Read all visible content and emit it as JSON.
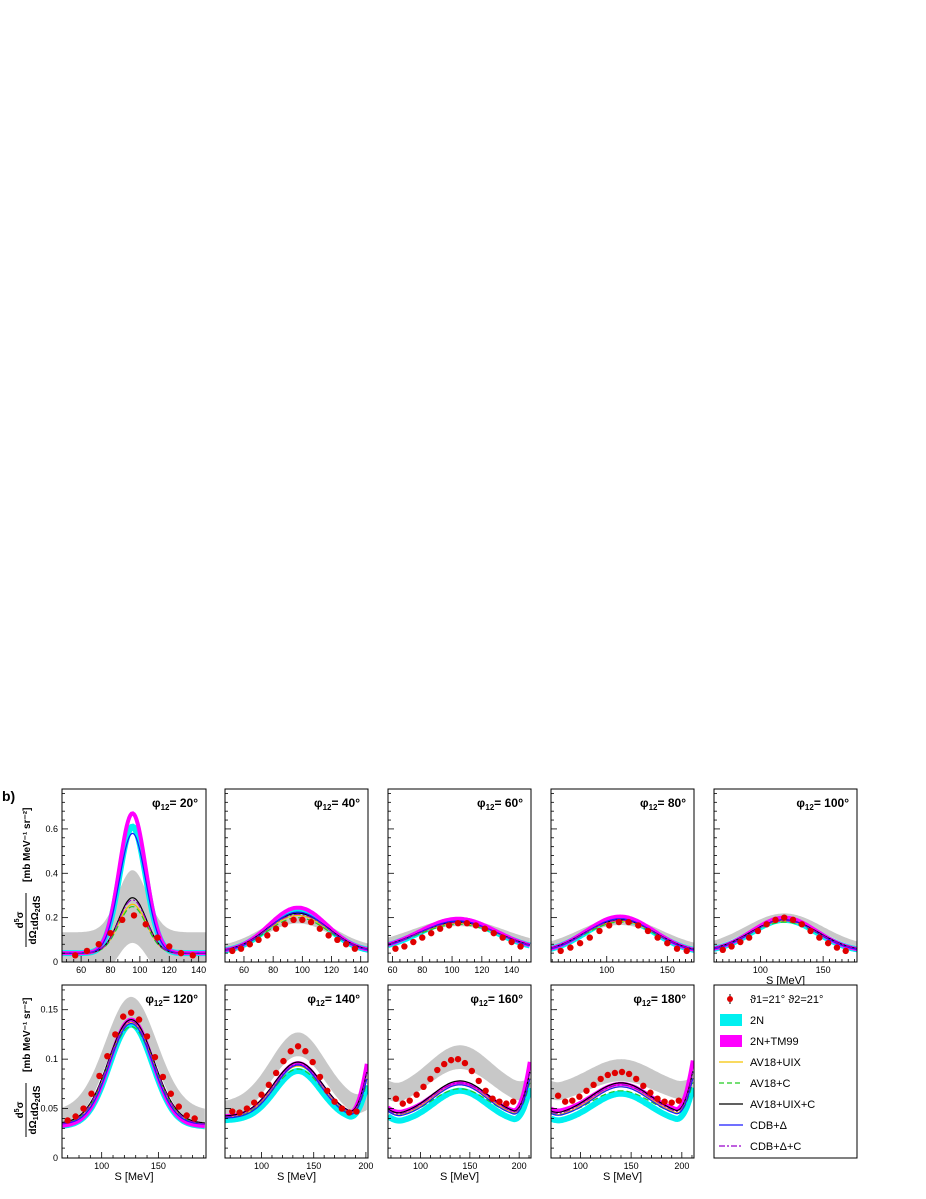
{
  "figure": {
    "panel_label": "b)",
    "legend": {
      "items": [
        {
          "key": "data",
          "label": "ϑ1=21° ϑ2=21°",
          "style": "points",
          "color": "#e00000"
        },
        {
          "key": "2N",
          "label": "2N",
          "style": "band",
          "color": "#00f0f0"
        },
        {
          "key": "2N+TM99",
          "label": "2N+TM99",
          "style": "band",
          "color": "#ff00ff"
        },
        {
          "key": "AV18+UIX",
          "label": "AV18+UIX",
          "style": "solid",
          "color": "#f5c400"
        },
        {
          "key": "AV18+C",
          "label": "AV18+C",
          "style": "dashed",
          "color": "#22cc22"
        },
        {
          "key": "AV18+UIX+C",
          "label": "AV18+UIX+C",
          "style": "solid",
          "color": "#000000"
        },
        {
          "key": "CDB+Δ",
          "label": "CDB+Δ",
          "style": "solid",
          "color": "#1a1aff"
        },
        {
          "key": "CDB+Δ+C",
          "label": "CDB+Δ+C",
          "style": "dashdot",
          "color": "#9900cc"
        }
      ]
    },
    "y_label_top": "[mb MeV⁻¹ sr⁻²]",
    "y_label_bottom": "[mb MeV⁻¹ sr⁻²]",
    "x_label": "S [MeV]"
  },
  "chart_data": [
    {
      "type": "line",
      "row": 0,
      "annotation": "φ12= 20°",
      "xlim": [
        47,
        145
      ],
      "ylim": [
        0,
        0.78
      ],
      "xticks": [
        60,
        80,
        100,
        120,
        140
      ],
      "yticks": [
        0,
        0.2,
        0.4,
        0.6
      ],
      "peak_x": 95,
      "peak_width": 9,
      "x_data": [
        56,
        64,
        72,
        80,
        88,
        96,
        104,
        112,
        120,
        128,
        136
      ],
      "data_y": [
        0.03,
        0.05,
        0.08,
        0.13,
        0.19,
        0.21,
        0.17,
        0.11,
        0.07,
        0.04,
        0.03
      ],
      "twoN": [
        0.04,
        0.61
      ],
      "tm99": [
        0.04,
        0.67
      ],
      "av18uix": [
        0.04,
        0.26
      ],
      "av18c": [
        0.04,
        0.25
      ],
      "av18uixc": [
        0.04,
        0.29
      ],
      "cdbd": [
        0.04,
        0.58
      ],
      "cdbdc": [
        0.04,
        0.28
      ],
      "band": [
        0.03,
        0.2
      ],
      "show_xlabel": false
    },
    {
      "type": "line",
      "row": 0,
      "annotation": "φ12= 40°",
      "xlim": [
        47,
        145
      ],
      "ylim": [
        0,
        0.78
      ],
      "xticks": [
        60,
        80,
        100,
        120,
        140
      ],
      "yticks": [
        0,
        0.2,
        0.4,
        0.6
      ],
      "peak_x": 97,
      "peak_width": 20,
      "x_data": [
        52,
        58,
        64,
        70,
        76,
        82,
        88,
        94,
        100,
        106,
        112,
        118,
        124,
        130,
        136
      ],
      "data_y": [
        0.05,
        0.06,
        0.08,
        0.1,
        0.12,
        0.15,
        0.17,
        0.19,
        0.19,
        0.18,
        0.15,
        0.12,
        0.1,
        0.08,
        0.06
      ],
      "twoN": [
        0.045,
        0.23
      ],
      "tm99": [
        0.045,
        0.245
      ],
      "av18uix": [
        0.045,
        0.21
      ],
      "av18c": [
        0.045,
        0.2
      ],
      "av18uixc": [
        0.045,
        0.22
      ],
      "cdbd": [
        0.045,
        0.225
      ],
      "cdbdc": [
        0.045,
        0.215
      ],
      "band": [
        0.03,
        0.02
      ],
      "show_xlabel": false
    },
    {
      "type": "line",
      "row": 0,
      "annotation": "φ12= 60°",
      "xlim": [
        57,
        153
      ],
      "ylim": [
        0,
        0.78
      ],
      "xticks": [
        60,
        80,
        100,
        120,
        140
      ],
      "yticks": [
        0,
        0.2,
        0.4,
        0.6
      ],
      "peak_x": 104,
      "peak_width": 26,
      "x_data": [
        62,
        68,
        74,
        80,
        86,
        92,
        98,
        104,
        110,
        116,
        122,
        128,
        134,
        140,
        146
      ],
      "data_y": [
        0.06,
        0.07,
        0.09,
        0.11,
        0.13,
        0.15,
        0.165,
        0.175,
        0.175,
        0.165,
        0.15,
        0.13,
        0.11,
        0.09,
        0.07
      ],
      "twoN": [
        0.05,
        0.185
      ],
      "tm99": [
        0.05,
        0.195
      ],
      "av18uix": [
        0.05,
        0.175
      ],
      "av18c": [
        0.05,
        0.17
      ],
      "av18uixc": [
        0.05,
        0.18
      ],
      "cdbd": [
        0.05,
        0.185
      ],
      "cdbdc": [
        0.05,
        0.178
      ],
      "band": [
        0.03,
        0.015
      ],
      "show_xlabel": false
    },
    {
      "type": "line",
      "row": 0,
      "annotation": "φ12= 80°",
      "xlim": [
        54,
        172
      ],
      "ylim": [
        0,
        0.78
      ],
      "xticks": [
        100,
        150
      ],
      "yticks": [
        0,
        0.2,
        0.4,
        0.6
      ],
      "peak_x": 111,
      "peak_width": 28,
      "x_data": [
        62,
        70,
        78,
        86,
        94,
        102,
        110,
        118,
        126,
        134,
        142,
        150,
        158,
        166
      ],
      "data_y": [
        0.05,
        0.065,
        0.085,
        0.11,
        0.14,
        0.165,
        0.18,
        0.18,
        0.165,
        0.14,
        0.11,
        0.085,
        0.06,
        0.05
      ],
      "twoN": [
        0.04,
        0.195
      ],
      "tm99": [
        0.04,
        0.205
      ],
      "av18uix": [
        0.04,
        0.185
      ],
      "av18c": [
        0.04,
        0.18
      ],
      "av18uixc": [
        0.04,
        0.19
      ],
      "cdbd": [
        0.04,
        0.195
      ],
      "cdbdc": [
        0.04,
        0.188
      ],
      "band": [
        0.03,
        0.015
      ],
      "show_xlabel": false
    },
    {
      "type": "line",
      "row": 0,
      "annotation": "φ12= 100°",
      "xlim": [
        63,
        177
      ],
      "ylim": [
        0,
        0.78
      ],
      "xticks": [
        100,
        150
      ],
      "yticks": [
        0,
        0.2,
        0.4,
        0.6
      ],
      "peak_x": 119,
      "peak_width": 26,
      "x_data": [
        70,
        77,
        84,
        91,
        98,
        105,
        112,
        119,
        126,
        133,
        140,
        147,
        154,
        161,
        168
      ],
      "data_y": [
        0.055,
        0.07,
        0.09,
        0.11,
        0.14,
        0.17,
        0.19,
        0.2,
        0.19,
        0.17,
        0.14,
        0.11,
        0.085,
        0.065,
        0.05
      ],
      "twoN": [
        0.045,
        0.19
      ],
      "tm99": [
        0.045,
        0.2
      ],
      "av18uix": [
        0.045,
        0.185
      ],
      "av18c": [
        0.045,
        0.18
      ],
      "av18uixc": [
        0.045,
        0.19
      ],
      "cdbd": [
        0.045,
        0.19
      ],
      "cdbdc": [
        0.045,
        0.186
      ],
      "band": [
        0.03,
        0.015
      ],
      "show_xlabel": true
    },
    {
      "type": "line",
      "row": 1,
      "annotation": "φ12= 120°",
      "xlim": [
        65,
        192
      ],
      "ylim": [
        0,
        0.175
      ],
      "xticks": [
        100,
        150
      ],
      "yticks": [
        0,
        0.05,
        0.1,
        0.15
      ],
      "peak_x": 126,
      "peak_width": 19,
      "x_data": [
        70,
        77,
        84,
        91,
        98,
        105,
        112,
        119,
        126,
        133,
        140,
        147,
        154,
        161,
        168,
        175,
        182
      ],
      "data_y": [
        0.038,
        0.042,
        0.05,
        0.065,
        0.083,
        0.103,
        0.125,
        0.143,
        0.147,
        0.14,
        0.123,
        0.102,
        0.082,
        0.065,
        0.052,
        0.043,
        0.04
      ],
      "twoN": [
        0.032,
        0.135
      ],
      "tm99": [
        0.032,
        0.14
      ],
      "av18uix": [
        0.034,
        0.137
      ],
      "av18c": [
        0.034,
        0.133
      ],
      "av18uixc": [
        0.035,
        0.14
      ],
      "cdbd": [
        0.034,
        0.136
      ],
      "cdbdc": [
        0.034,
        0.138
      ],
      "band": [
        0.006,
        0.012
      ],
      "show_xlabel": true
    },
    {
      "type": "line",
      "row": 1,
      "annotation": "φ12= 140°",
      "xlim": [
        65,
        202
      ],
      "ylim": [
        0,
        0.175
      ],
      "xticks": [
        100,
        150,
        200
      ],
      "yticks": [
        0,
        0.05,
        0.1,
        0.15
      ],
      "peak_x": 135,
      "peak_width": 22,
      "x_data": [
        72,
        79,
        86,
        93,
        100,
        107,
        114,
        121,
        128,
        135,
        142,
        149,
        156,
        163,
        170,
        177,
        184,
        191
      ],
      "data_y": [
        0.047,
        0.046,
        0.05,
        0.056,
        0.064,
        0.074,
        0.086,
        0.098,
        0.108,
        0.113,
        0.108,
        0.097,
        0.082,
        0.068,
        0.057,
        0.05,
        0.046,
        0.047
      ],
      "twoN": [
        0.038,
        0.088
      ],
      "tm99": [
        0.042,
        0.096
      ],
      "av18uix": [
        0.04,
        0.093
      ],
      "av18c": [
        0.04,
        0.09
      ],
      "av18uixc": [
        0.042,
        0.097
      ],
      "cdbd": [
        0.04,
        0.094
      ],
      "cdbdc": [
        0.041,
        0.095
      ],
      "band": [
        0.006,
        0.01
      ],
      "show_xlabel": true
    },
    {
      "type": "line",
      "row": 1,
      "annotation": "φ12= 160°",
      "xlim": [
        67,
        212
      ],
      "ylim": [
        0,
        0.175
      ],
      "xticks": [
        100,
        150,
        200
      ],
      "yticks": [
        0,
        0.05,
        0.1,
        0.15
      ],
      "peak_x": 140,
      "peak_width": 27,
      "x_data": [
        75,
        82,
        89,
        96,
        103,
        110,
        117,
        124,
        131,
        138,
        145,
        152,
        159,
        166,
        173,
        180,
        187,
        194
      ],
      "data_y": [
        0.06,
        0.055,
        0.058,
        0.064,
        0.072,
        0.08,
        0.089,
        0.095,
        0.099,
        0.1,
        0.096,
        0.088,
        0.078,
        0.068,
        0.06,
        0.057,
        0.055,
        0.057
      ],
      "twoN": [
        0.035,
        0.068
      ],
      "tm99": [
        0.044,
        0.076
      ],
      "av18uix": [
        0.04,
        0.074
      ],
      "av18c": [
        0.04,
        0.07
      ],
      "av18uixc": [
        0.042,
        0.078
      ],
      "cdbd": [
        0.04,
        0.074
      ],
      "cdbdc": [
        0.041,
        0.076
      ],
      "band": [
        0.006,
        0.01
      ],
      "show_xlabel": true
    },
    {
      "type": "line",
      "row": 1,
      "annotation": "φ12= 180°",
      "xlim": [
        71,
        212
      ],
      "ylim": [
        0,
        0.175
      ],
      "xticks": [
        100,
        150,
        200
      ],
      "yticks": [
        0,
        0.05,
        0.1,
        0.15
      ],
      "peak_x": 140,
      "peak_width": 28,
      "x_data": [
        78,
        85,
        92,
        99,
        106,
        113,
        120,
        127,
        134,
        141,
        148,
        155,
        162,
        169,
        176,
        183,
        190,
        197
      ],
      "data_y": [
        0.063,
        0.057,
        0.058,
        0.062,
        0.068,
        0.074,
        0.08,
        0.084,
        0.086,
        0.087,
        0.085,
        0.08,
        0.073,
        0.066,
        0.06,
        0.057,
        0.056,
        0.058
      ],
      "twoN": [
        0.035,
        0.065
      ],
      "tm99": [
        0.045,
        0.075
      ],
      "av18uix": [
        0.04,
        0.072
      ],
      "av18c": [
        0.04,
        0.068
      ],
      "av18uixc": [
        0.042,
        0.076
      ],
      "cdbd": [
        0.04,
        0.072
      ],
      "cdbdc": [
        0.041,
        0.074
      ],
      "band": [
        0.006,
        0.009
      ],
      "show_xlabel": true
    }
  ]
}
